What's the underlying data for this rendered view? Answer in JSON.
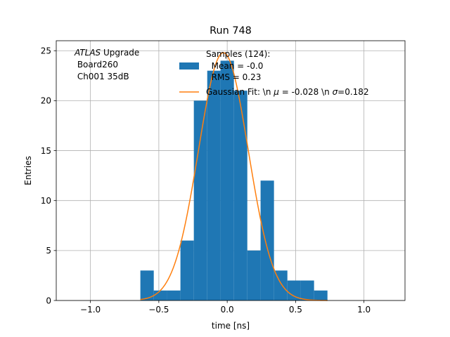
{
  "chart_data": {
    "type": "bar",
    "title": "Run 748",
    "xlabel": "time [ns]",
    "ylabel": "Entries",
    "xlim": [
      -1.25,
      1.3
    ],
    "ylim": [
      0,
      26
    ],
    "grid": true,
    "x_ticks": [
      -1.0,
      -0.5,
      0.0,
      0.5,
      1.0
    ],
    "x_tick_labels": [
      "−1.0",
      "−0.5",
      "0.0",
      "0.5",
      "1.0"
    ],
    "y_ticks": [
      0,
      5,
      10,
      15,
      20,
      25
    ],
    "y_tick_labels": [
      "0",
      "5",
      "10",
      "15",
      "20",
      "25"
    ],
    "histogram": {
      "bin_edges": [
        -0.635,
        -0.537,
        -0.44,
        -0.342,
        -0.244,
        -0.146,
        -0.049,
        0.049,
        0.147,
        0.244,
        0.342,
        0.44,
        0.537,
        0.635,
        0.733
      ],
      "counts": [
        3,
        1,
        1,
        6,
        20,
        23,
        24,
        21,
        5,
        12,
        3,
        2,
        2,
        1
      ],
      "color": "#1f77b4"
    },
    "gaussian_fit": {
      "mu": -0.028,
      "sigma": 0.182,
      "amplitude": 24.8,
      "x_range": [
        -0.635,
        0.733
      ],
      "color": "#ff7f0e"
    },
    "legend": {
      "placement": "upper-right",
      "entries": [
        {
          "label_lines": [
            "Samples (124):",
            "  Mean = -0.0",
            "  RMS = 0.23"
          ],
          "kind": "patch"
        },
        {
          "label_prefix": "Gaussian Fit: \\n ",
          "label_mu": "μ",
          "label_mid": " = -0.028 \\n ",
          "label_sigma": "σ",
          "label_suffix": "=0.182",
          "kind": "line"
        }
      ]
    },
    "annotation": {
      "italic": "ATLAS",
      "rest": " Upgrade",
      "line2": " Board260",
      "line3": " Ch001 35dB",
      "placement": "top-left"
    }
  }
}
